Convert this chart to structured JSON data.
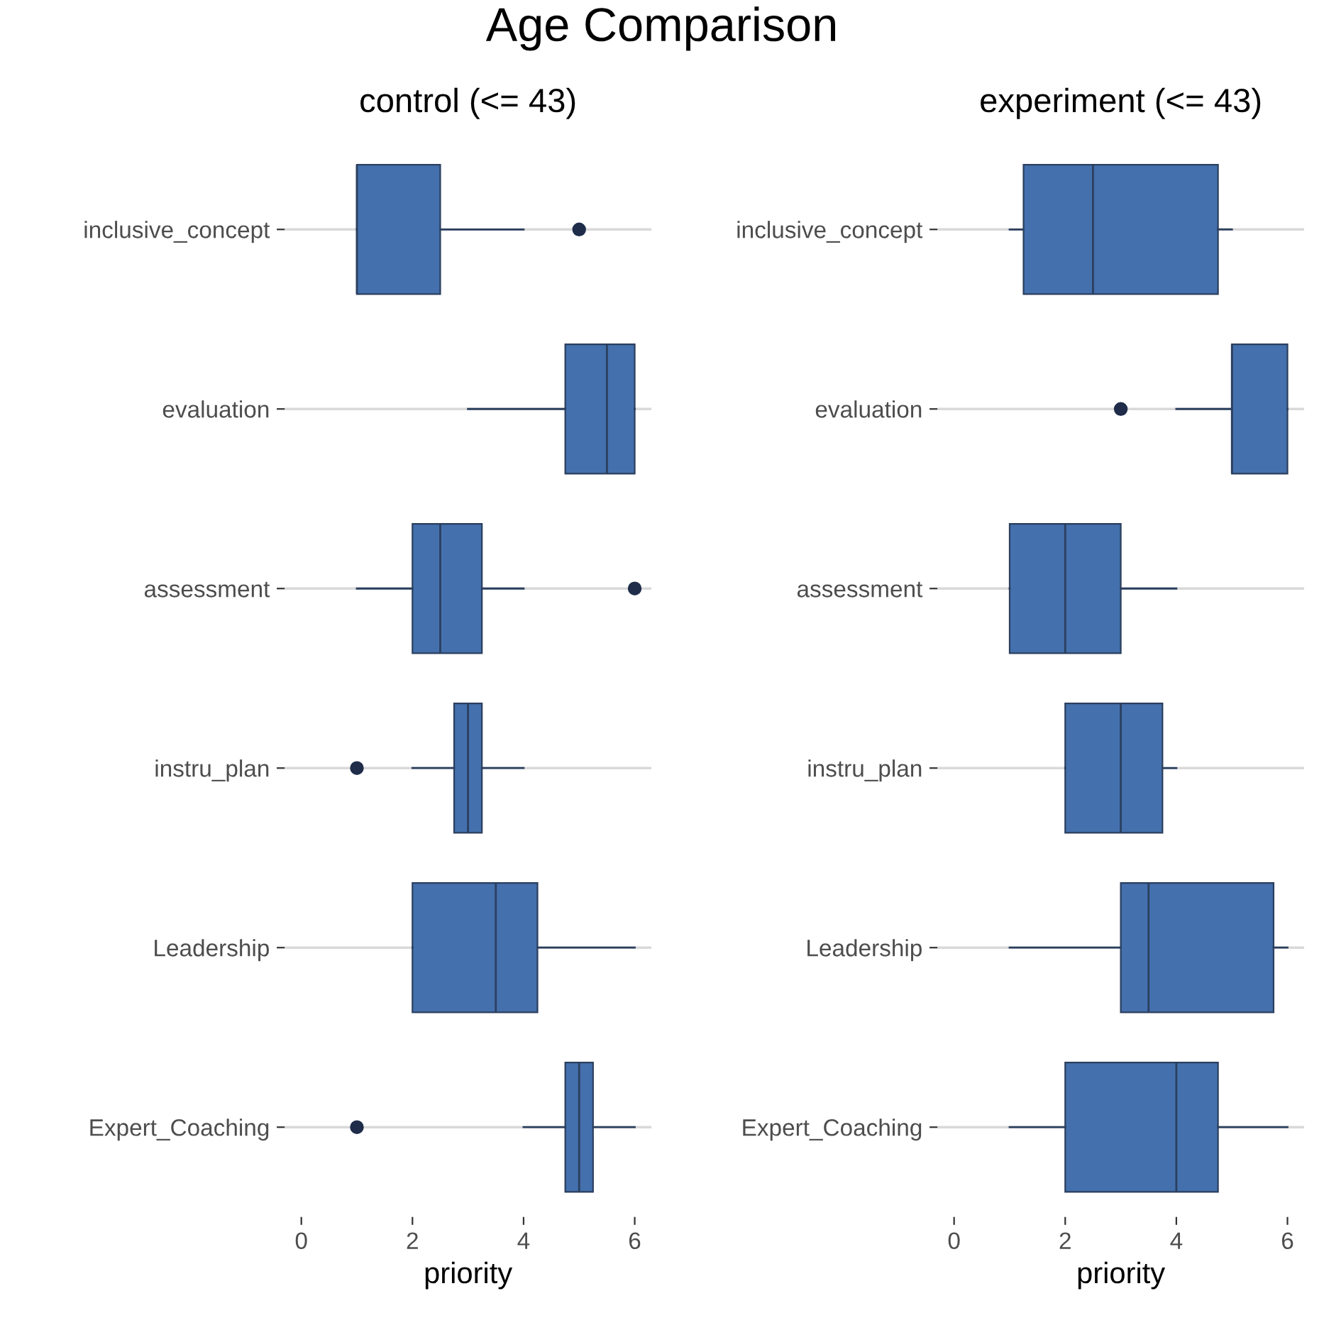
{
  "chart_data": [
    {
      "type": "box",
      "title": "Age Comparison",
      "subtitle": "control (<= 43)",
      "xlabel": "priority",
      "orientation": "horizontal",
      "grid": "y",
      "legend": false,
      "color": "#4470ad",
      "categories": [
        "inclusive_concept",
        "evaluation",
        "assessment",
        "instru_plan",
        "Leadership",
        "Expert_Coaching"
      ],
      "xlim": [
        -0.3,
        6.3
      ],
      "xticks": [
        0,
        2,
        4,
        6
      ],
      "boxes": [
        {
          "low": 1,
          "q1": 1,
          "median": 1,
          "q3": 2.5,
          "high": 4,
          "outliers": [
            5
          ]
        },
        {
          "low": 3,
          "q1": 4.75,
          "median": 5.5,
          "q3": 6,
          "high": 6
        },
        {
          "low": 1,
          "q1": 2,
          "median": 2.5,
          "q3": 3.25,
          "high": 4,
          "outliers": [
            6
          ]
        },
        {
          "low": 2,
          "q1": 2.75,
          "median": 3,
          "q3": 3.25,
          "high": 4,
          "outliers": [
            1
          ]
        },
        {
          "low": 2,
          "q1": 2,
          "median": 3.5,
          "q3": 4.25,
          "high": 6
        },
        {
          "low": 4,
          "q1": 4.75,
          "median": 5,
          "q3": 5.25,
          "high": 6,
          "outliers": [
            1
          ]
        }
      ]
    },
    {
      "type": "box",
      "subtitle": "experiment (<= 43)",
      "xlabel": "priority",
      "orientation": "horizontal",
      "grid": "y",
      "legend": false,
      "color": "#4470ad",
      "categories": [
        "inclusive_concept",
        "evaluation",
        "assessment",
        "instru_plan",
        "Leadership",
        "Expert_Coaching"
      ],
      "xlim": [
        -0.3,
        6.3
      ],
      "xticks": [
        0,
        2,
        4,
        6
      ],
      "boxes": [
        {
          "low": 1,
          "q1": 1.25,
          "median": 2.5,
          "q3": 4.75,
          "high": 5
        },
        {
          "low": 4,
          "q1": 5,
          "median": 5,
          "q3": 6,
          "high": 6,
          "outliers": [
            3
          ]
        },
        {
          "low": 1,
          "q1": 1,
          "median": 2,
          "q3": 3,
          "high": 4
        },
        {
          "low": 2,
          "q1": 2,
          "median": 3,
          "q3": 3.75,
          "high": 4
        },
        {
          "low": 1,
          "q1": 3,
          "median": 3.5,
          "q3": 5.75,
          "high": 6
        },
        {
          "low": 1,
          "q1": 2,
          "median": 4,
          "q3": 4.75,
          "high": 6
        }
      ]
    }
  ]
}
